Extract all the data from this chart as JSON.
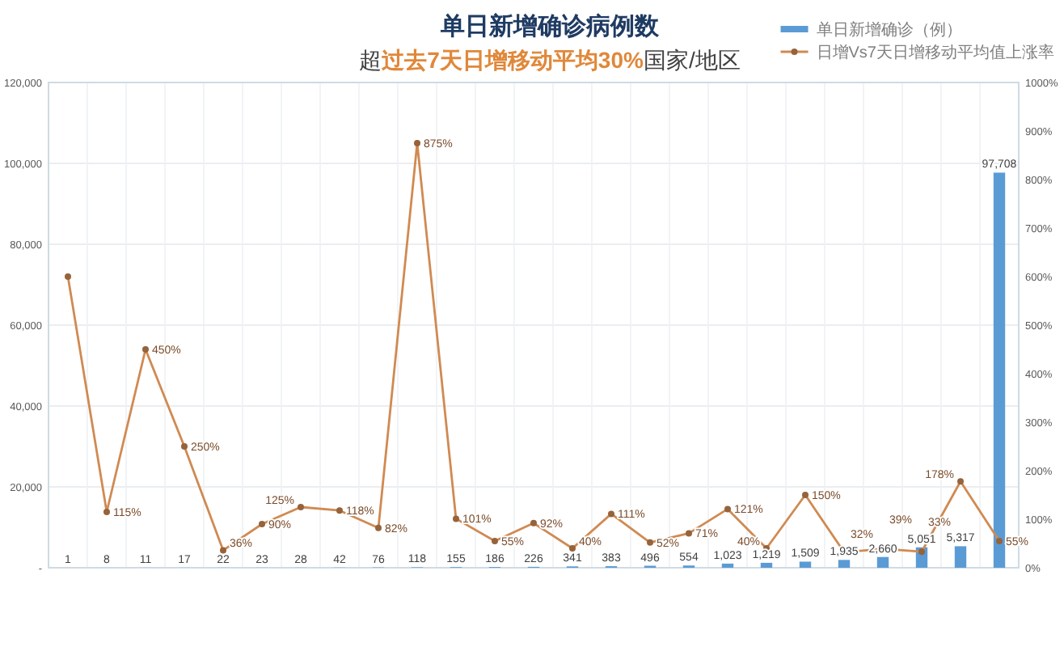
{
  "chart_data": {
    "type": "bar",
    "title": "单日新增确诊病例数",
    "subtitle": "超**过去7天日增移动平均30%**国家/地区",
    "categories": [
      null,
      null,
      null,
      null,
      null,
      null,
      null,
      null,
      null,
      null,
      null,
      null,
      null,
      null,
      null,
      null,
      null,
      null,
      null,
      null,
      null,
      null,
      null,
      null,
      null
    ],
    "ylim": [
      0,
      120000
    ],
    "yticks": [
      {
        "value": 0,
        "label": "-"
      },
      {
        "value": 20000,
        "label": "20,000"
      },
      {
        "value": 40000,
        "label": "40,000"
      },
      {
        "value": 60000,
        "label": "60,000"
      },
      {
        "value": 80000,
        "label": "80,000"
      },
      {
        "value": 100000,
        "label": "100,000"
      },
      {
        "value": 120000,
        "label": "120,000"
      }
    ],
    "y2lim": [
      0,
      1000
    ],
    "y2ticks": [
      {
        "value": 0,
        "label": "0%"
      },
      {
        "value": 100,
        "label": "100%"
      },
      {
        "value": 200,
        "label": "200%"
      },
      {
        "value": 300,
        "label": "300%"
      },
      {
        "value": 400,
        "label": "400%"
      },
      {
        "value": 500,
        "label": "500%"
      },
      {
        "value": 600,
        "label": "600%"
      },
      {
        "value": 700,
        "label": "700%"
      },
      {
        "value": 800,
        "label": "800%"
      },
      {
        "value": 900,
        "label": "900%"
      },
      {
        "value": 1000,
        "label": "1000%"
      }
    ],
    "grid": true,
    "legend": "top right",
    "series": [
      {
        "name": "单日新增确诊（例）",
        "color": "#5b9bd5",
        "values": [
          1,
          8,
          11,
          17,
          22,
          23,
          28,
          42,
          76,
          118,
          155,
          186,
          226,
          341,
          383,
          496,
          554,
          1023,
          1219,
          1509,
          1935,
          2660,
          5051,
          5317,
          97708
        ],
        "value_labels": [
          "1",
          "8",
          "11",
          "17",
          "22",
          "23",
          "28",
          "42",
          "76",
          "118",
          "155",
          "186",
          "226",
          "341",
          "383",
          "496",
          "554",
          "1,023",
          "1,219",
          "1,509",
          "1,935",
          "2,660",
          "5,051",
          "5,317",
          "97,708"
        ]
      },
      {
        "name": "日增Vs7天日增移动平均值上涨率",
        "type": "line",
        "axis": "y2",
        "color": "#d08a52",
        "marker": "circle",
        "values": [
          600,
          115,
          450,
          250,
          36,
          90,
          125,
          118,
          82,
          875,
          101,
          55,
          92,
          40,
          111,
          52,
          71,
          121,
          40,
          150,
          32,
          39,
          33,
          178,
          55
        ],
        "value_labels": [
          null,
          "115%",
          "450%",
          "250%",
          "36%",
          "90%",
          "125%",
          "118%",
          "82%",
          "875%",
          "101%",
          "55%",
          "92%",
          "40%",
          "111%",
          "52%",
          "71%",
          "121%",
          "40%",
          "150%",
          "32%",
          "39%",
          "33%",
          "178%",
          "55%"
        ]
      }
    ]
  }
}
